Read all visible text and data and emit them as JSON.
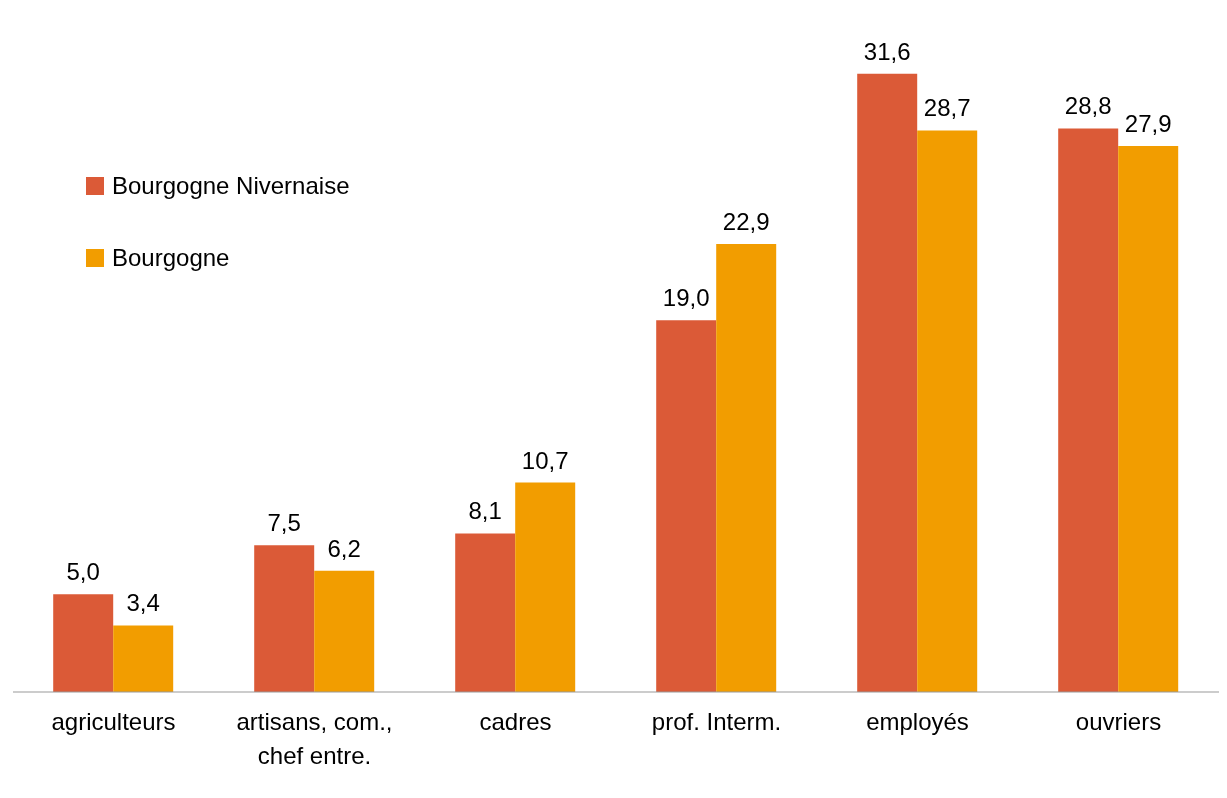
{
  "chart_data": {
    "type": "bar",
    "categories": [
      "agriculteurs",
      "artisans, com., chef entre.",
      "cadres",
      "prof. Interm.",
      "employés",
      "ouvriers"
    ],
    "series": [
      {
        "name": "Bourgogne Nivernaise",
        "color": "#db5a37",
        "values": [
          5.0,
          7.5,
          8.1,
          19.0,
          31.6,
          28.8
        ],
        "value_labels": [
          "5,0",
          "7,5",
          "8,1",
          "19,0",
          "31,6",
          "28,8"
        ]
      },
      {
        "name": "Bourgogne",
        "color": "#f29d00",
        "values": [
          3.4,
          6.2,
          10.7,
          22.9,
          28.7,
          27.9
        ],
        "value_labels": [
          "3,4",
          "6,2",
          "10,7",
          "22,9",
          "28,7",
          "27,9"
        ]
      }
    ],
    "grid": false,
    "legend": "top left"
  }
}
